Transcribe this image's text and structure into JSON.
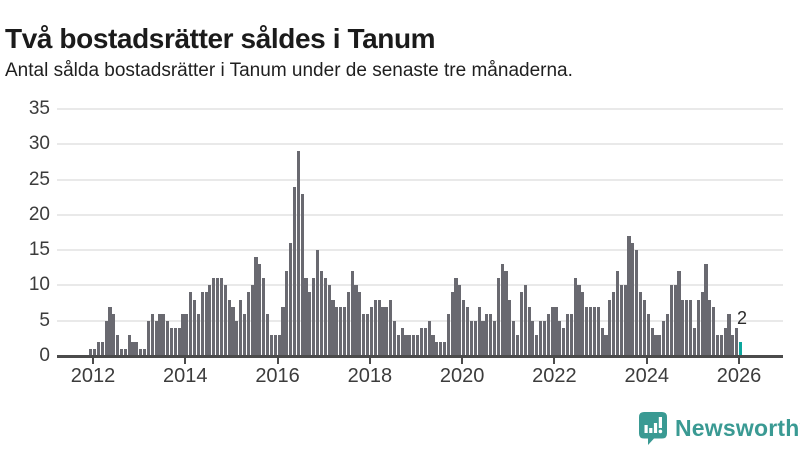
{
  "title": "Två bostadsrätter såldes i Tanum",
  "subtitle": "Antal sålda bostadsrätter i Tanum under de senaste tre månaderna.",
  "annotation_label": "2",
  "branding": {
    "name": "Newsworthy",
    "icon": "newsworthy-speech-bubble-bar-chart-icon",
    "color": "#3a9a93"
  },
  "colors": {
    "background": "#ffffff",
    "bar": "#696970",
    "highlight": "#0ca69d",
    "grid": "#e9e9e9",
    "axis": "#4b4b4b",
    "axis_text": "#3c3c3c",
    "title_text": "#1b1b1b"
  },
  "chart_data": {
    "type": "bar",
    "title": "Två bostadsrätter såldes i Tanum",
    "subtitle": "Antal sålda bostadsrätter i Tanum under de senaste tre månaderna.",
    "xlabel": "",
    "ylabel": "",
    "ylim": [
      0,
      35
    ],
    "y_ticks": [
      0,
      5,
      10,
      15,
      20,
      25,
      30,
      35
    ],
    "x_tick_labels": [
      "2012",
      "2014",
      "2016",
      "2018",
      "2020",
      "2022",
      "2024",
      "2026"
    ],
    "grid": "horizontal",
    "legend": "none",
    "start_month": "2011-12",
    "end_month": "2026-01",
    "values": [
      1,
      1,
      2,
      2,
      5,
      7,
      6,
      3,
      1,
      1,
      3,
      2,
      2,
      1,
      1,
      5,
      6,
      5,
      6,
      6,
      5,
      4,
      4,
      4,
      6,
      6,
      9,
      8,
      6,
      9,
      9,
      10,
      11,
      11,
      11,
      10,
      8,
      7,
      5,
      8,
      6,
      9,
      10,
      14,
      13,
      11,
      6,
      3,
      3,
      3,
      7,
      12,
      16,
      24,
      29,
      23,
      11,
      9,
      11,
      15,
      12,
      11,
      10,
      8,
      7,
      7,
      7,
      9,
      12,
      10,
      9,
      6,
      6,
      7,
      8,
      8,
      7,
      7,
      8,
      5,
      3,
      4,
      3,
      3,
      3,
      3,
      4,
      4,
      5,
      3,
      2,
      2,
      2,
      6,
      9,
      11,
      10,
      8,
      7,
      5,
      5,
      7,
      5,
      6,
      6,
      5,
      11,
      13,
      12,
      8,
      5,
      3,
      9,
      10,
      7,
      5,
      3,
      5,
      5,
      6,
      7,
      7,
      5,
      4,
      6,
      6,
      11,
      10,
      9,
      7,
      7,
      7,
      7,
      4,
      3,
      8,
      9,
      12,
      10,
      10,
      17,
      16,
      15,
      9,
      8,
      6,
      4,
      3,
      3,
      5,
      6,
      10,
      10,
      12,
      8,
      8,
      8,
      4,
      8,
      9,
      13,
      8,
      7,
      3,
      3,
      4,
      6,
      3,
      4,
      2
    ],
    "highlight": {
      "index": 169,
      "value": 2,
      "label": "2"
    }
  }
}
